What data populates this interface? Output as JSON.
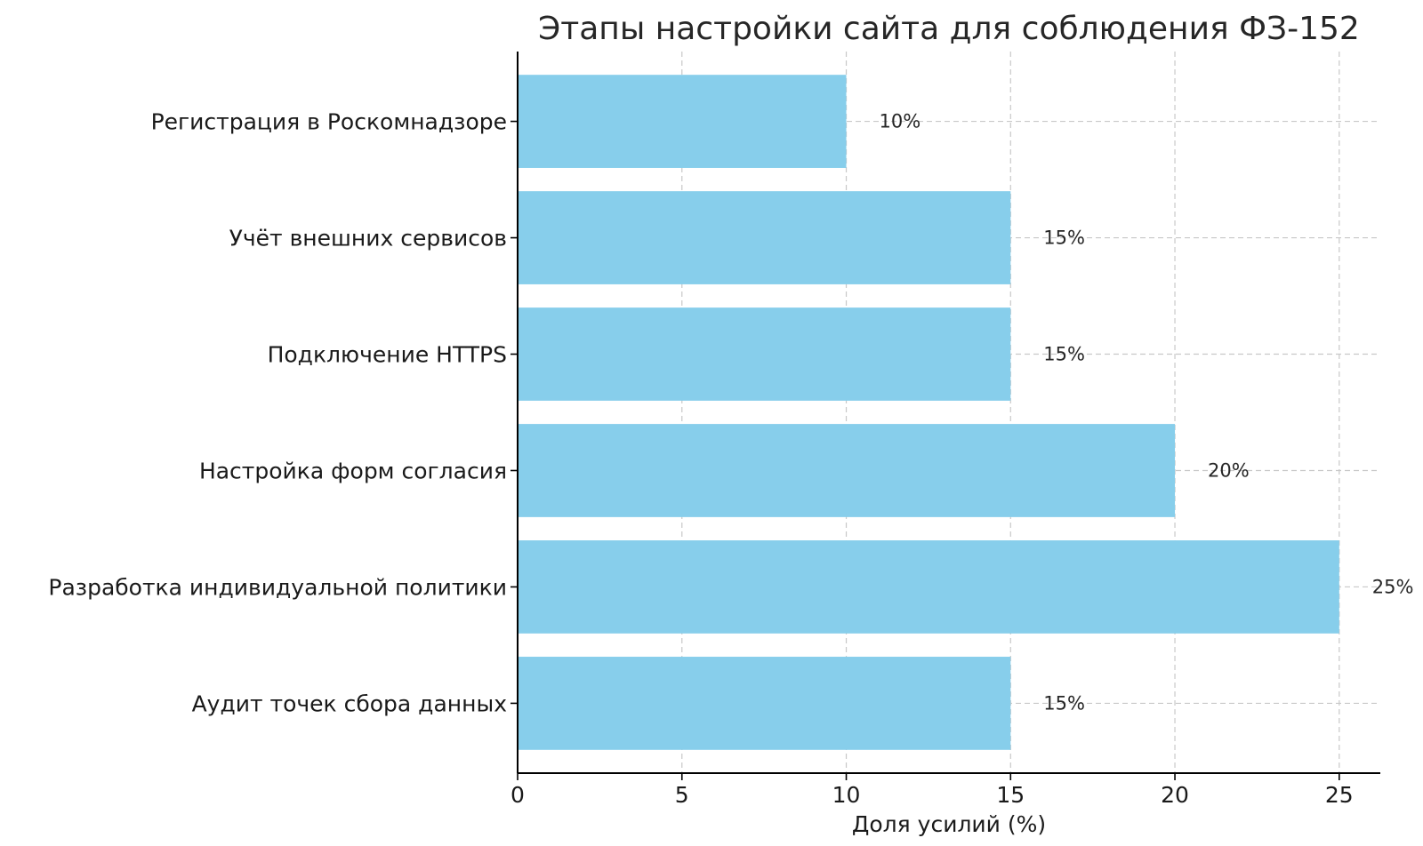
{
  "chart_data": {
    "type": "bar",
    "orientation": "horizontal",
    "title": "Этапы настройки сайта для соблюдения ФЗ-152",
    "xlabel": "Доля усилий (%)",
    "ylabel": "",
    "categories": [
      "Аудит точек сбора данных",
      "Разработка индивидуальной политики",
      "Настройка форм согласия",
      "Подключение HTTPS",
      "Учёт внешних сервисов",
      "Регистрация в Роскомнадзоре"
    ],
    "values": [
      15,
      25,
      20,
      15,
      15,
      10
    ],
    "data_labels": [
      "15%",
      "25%",
      "20%",
      "15%",
      "15%",
      "10%"
    ],
    "xlim": [
      0,
      26.25
    ],
    "xticks": [
      0,
      5,
      10,
      15,
      20,
      25
    ],
    "grid": true,
    "bar_color": "#87CEEB"
  }
}
